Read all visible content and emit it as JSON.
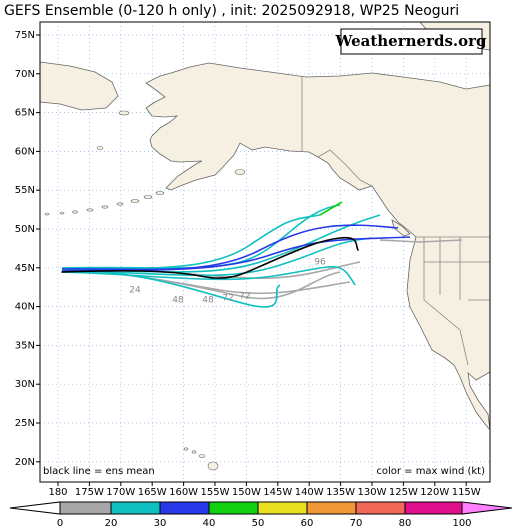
{
  "header": {
    "title": "GEFS Ensemble (0-120 h only) , init: 2025092918, WP25 Neoguri",
    "watermark": "Weathernerds.org"
  },
  "map": {
    "lat_labels": [
      "75N",
      "70N",
      "65N",
      "60N",
      "55N",
      "50N",
      "45N",
      "40N",
      "35N",
      "30N",
      "25N",
      "20N"
    ],
    "lon_labels": [
      "180",
      "175W",
      "170W",
      "165W",
      "160W",
      "155W",
      "150W",
      "145W",
      "140W",
      "135W",
      "130W",
      "125W",
      "120W",
      "115W"
    ],
    "track_labels": [
      "24",
      "48",
      "48",
      "72",
      "72",
      "96"
    ],
    "legend": "black line = ens mean",
    "color_note": "color = max wind (kt)"
  },
  "colorbar": {
    "labels": [
      "0",
      "20",
      "30",
      "40",
      "50",
      "60",
      "70",
      "80",
      "100"
    ],
    "colors": [
      "#a8a8a8",
      "#10c0c0",
      "#2838e8",
      "#10d010",
      "#e8e020",
      "#f09838",
      "#f06858",
      "#e0108c"
    ],
    "over_color": "#ff80ff"
  }
}
